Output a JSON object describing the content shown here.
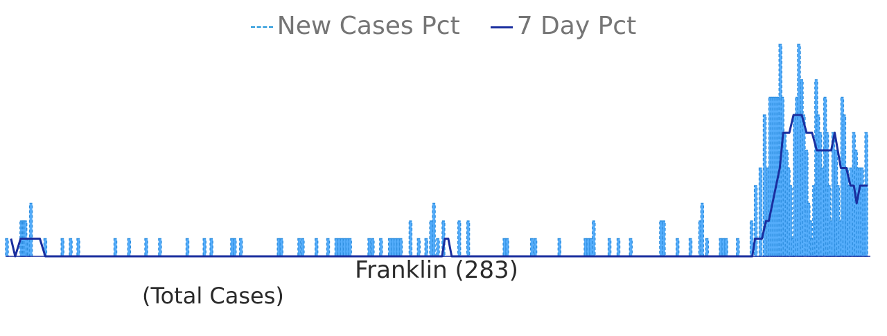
{
  "legend": {
    "series_a": "New Cases Pct",
    "series_b": "7 Day Pct"
  },
  "caption": {
    "main": "Franklin (283)",
    "sub": "(Total Cases)"
  },
  "colors": {
    "bars": "#55adfb",
    "dashed": "#2f8fe0",
    "rolling": "#1a2e9e"
  },
  "chart_data": {
    "type": "bar",
    "title": "",
    "xlabel": "",
    "ylabel": "",
    "grid": false,
    "legend_position": "top-center",
    "ylim": [
      0,
      13
    ],
    "series": [
      {
        "name": "New Cases Pct",
        "style": "bars-with-dashed-outline",
        "points": [
          [
            2,
            1
          ],
          [
            23,
            2
          ],
          [
            25,
            2
          ],
          [
            27,
            2
          ],
          [
            29,
            2
          ],
          [
            32,
            1
          ],
          [
            34,
            1
          ],
          [
            37,
            3
          ],
          [
            58,
            1
          ],
          [
            83,
            1
          ],
          [
            95,
            1
          ],
          [
            106,
            1
          ],
          [
            160,
            1
          ],
          [
            180,
            1
          ],
          [
            205,
            1
          ],
          [
            225,
            1
          ],
          [
            265,
            1
          ],
          [
            290,
            1
          ],
          [
            300,
            1
          ],
          [
            330,
            1
          ],
          [
            334,
            1
          ],
          [
            343,
            1
          ],
          [
            398,
            1
          ],
          [
            402,
            1
          ],
          [
            428,
            1
          ],
          [
            433,
            1
          ],
          [
            453,
            1
          ],
          [
            470,
            1
          ],
          [
            482,
            1
          ],
          [
            486,
            1
          ],
          [
            490,
            1
          ],
          [
            494,
            1
          ],
          [
            498,
            1
          ],
          [
            502,
            1
          ],
          [
            530,
            1
          ],
          [
            535,
            1
          ],
          [
            547,
            1
          ],
          [
            560,
            1
          ],
          [
            564,
            1
          ],
          [
            568,
            1
          ],
          [
            572,
            1
          ],
          [
            576,
            1
          ],
          [
            590,
            2
          ],
          [
            602,
            1
          ],
          [
            613,
            1
          ],
          [
            620,
            2
          ],
          [
            624,
            3
          ],
          [
            630,
            1
          ],
          [
            638,
            2
          ],
          [
            661,
            2
          ],
          [
            674,
            2
          ],
          [
            727,
            1
          ],
          [
            731,
            1
          ],
          [
            767,
            1
          ],
          [
            772,
            1
          ],
          [
            807,
            1
          ],
          [
            845,
            1
          ],
          [
            849,
            1
          ],
          [
            853,
            1
          ],
          [
            857,
            2
          ],
          [
            880,
            1
          ],
          [
            893,
            1
          ],
          [
            911,
            1
          ],
          [
            955,
            2
          ],
          [
            959,
            2
          ],
          [
            979,
            1
          ],
          [
            998,
            1
          ],
          [
            1012,
            2
          ],
          [
            1015,
            3
          ],
          [
            1022,
            1
          ],
          [
            1042,
            1
          ],
          [
            1046,
            1
          ],
          [
            1050,
            1
          ],
          [
            1067,
            1
          ],
          [
            1087,
            2
          ],
          [
            1093,
            4
          ],
          [
            1100,
            5
          ],
          [
            1106,
            8
          ],
          [
            1111,
            5
          ],
          [
            1114,
            9
          ],
          [
            1117,
            9
          ],
          [
            1120,
            9
          ],
          [
            1123,
            9
          ],
          [
            1126,
            9
          ],
          [
            1129,
            12
          ],
          [
            1132,
            9
          ],
          [
            1135,
            7
          ],
          [
            1138,
            6
          ],
          [
            1141,
            5
          ],
          [
            1144,
            4
          ],
          [
            1147,
            1
          ],
          [
            1150,
            8
          ],
          [
            1153,
            9
          ],
          [
            1156,
            12
          ],
          [
            1160,
            10
          ],
          [
            1163,
            8
          ],
          [
            1167,
            6
          ],
          [
            1170,
            3
          ],
          [
            1173,
            2
          ],
          [
            1175,
            1
          ],
          [
            1178,
            4
          ],
          [
            1181,
            10
          ],
          [
            1184,
            8
          ],
          [
            1187,
            7
          ],
          [
            1190,
            5
          ],
          [
            1194,
            9
          ],
          [
            1197,
            7
          ],
          [
            1200,
            4
          ],
          [
            1203,
            2
          ],
          [
            1206,
            7
          ],
          [
            1210,
            6
          ],
          [
            1213,
            4
          ],
          [
            1216,
            2
          ],
          [
            1219,
            9
          ],
          [
            1222,
            8
          ],
          [
            1226,
            5
          ],
          [
            1229,
            4
          ],
          [
            1232,
            5
          ],
          [
            1236,
            7
          ],
          [
            1239,
            6
          ],
          [
            1242,
            5
          ],
          [
            1245,
            5
          ],
          [
            1248,
            5
          ],
          [
            1251,
            4
          ],
          [
            1254,
            7
          ]
        ]
      },
      {
        "name": "7 Day Pct",
        "style": "line",
        "points": [
          [
            8,
            1
          ],
          [
            14,
            0
          ],
          [
            22,
            1
          ],
          [
            50,
            1
          ],
          [
            58,
            0
          ],
          [
            636,
            0
          ],
          [
            640,
            1
          ],
          [
            645,
            1
          ],
          [
            650,
            0
          ],
          [
            1088,
            0
          ],
          [
            1092,
            1
          ],
          [
            1102,
            1
          ],
          [
            1108,
            2
          ],
          [
            1112,
            2
          ],
          [
            1128,
            5
          ],
          [
            1133,
            7
          ],
          [
            1142,
            7
          ],
          [
            1148,
            8
          ],
          [
            1160,
            8
          ],
          [
            1167,
            7
          ],
          [
            1175,
            7
          ],
          [
            1182,
            6
          ],
          [
            1188,
            6
          ],
          [
            1195,
            6
          ],
          [
            1203,
            6
          ],
          [
            1208,
            7
          ],
          [
            1217,
            5
          ],
          [
            1225,
            5
          ],
          [
            1231,
            4
          ],
          [
            1236,
            4
          ],
          [
            1240,
            3
          ],
          [
            1245,
            4
          ],
          [
            1256,
            4
          ]
        ]
      }
    ]
  }
}
